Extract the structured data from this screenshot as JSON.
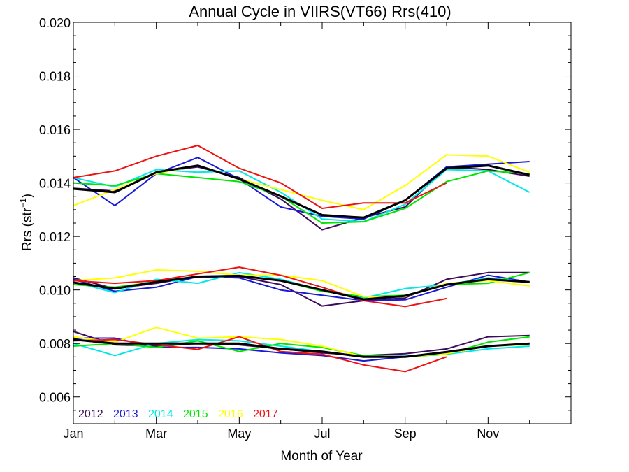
{
  "chart_data": {
    "type": "line",
    "title": "Annual Cycle in VIIRS(VT66) Rrs(410)",
    "xlabel": "Month of Year",
    "ylabel_main": "Rrs (str",
    "ylabel_sup": "−1",
    "ylabel_tail": ")",
    "xlim": [
      1,
      13
    ],
    "ylim": [
      0.005,
      0.02
    ],
    "x_ticks": [
      {
        "value": 1,
        "label": "Jan"
      },
      {
        "value": 3,
        "label": "Mar"
      },
      {
        "value": 5,
        "label": "May"
      },
      {
        "value": 7,
        "label": "Jul"
      },
      {
        "value": 9,
        "label": "Sep"
      },
      {
        "value": 11,
        "label": "Nov"
      }
    ],
    "y_ticks": [
      {
        "value": 0.006,
        "label": "0.006"
      },
      {
        "value": 0.008,
        "label": "0.008"
      },
      {
        "value": 0.01,
        "label": "0.010"
      },
      {
        "value": 0.012,
        "label": "0.012"
      },
      {
        "value": 0.014,
        "label": "0.014"
      },
      {
        "value": 0.016,
        "label": "0.016"
      },
      {
        "value": 0.018,
        "label": "0.018"
      },
      {
        "value": 0.02,
        "label": "0.020"
      }
    ],
    "x": [
      1,
      2,
      3,
      4,
      5,
      6,
      7,
      8,
      9,
      10,
      11,
      12
    ],
    "legend_placement": "bottom-left",
    "series": [
      {
        "name": "2012",
        "color": "#3c0a5a",
        "width": 2,
        "upper": [
          0.0138,
          0.0137,
          0.0144,
          0.0146,
          0.0142,
          0.0134,
          0.01225,
          0.0127,
          0.0131,
          0.0146,
          0.0145,
          0.01425
        ],
        "middle": [
          0.01045,
          0.01005,
          0.01025,
          0.0105,
          0.0105,
          0.0102,
          0.0094,
          0.0096,
          0.0097,
          0.0104,
          0.01065,
          0.01065
        ],
        "lower": [
          0.00845,
          0.00795,
          0.0079,
          0.008,
          0.00795,
          0.0078,
          0.00765,
          0.00755,
          0.00762,
          0.0078,
          0.00825,
          0.0083
        ]
      },
      {
        "name": "2013",
        "color": "#1a1ad6",
        "width": 2,
        "upper": [
          0.0142,
          0.01315,
          0.01435,
          0.01495,
          0.01415,
          0.0131,
          0.01275,
          0.01265,
          0.01335,
          0.0146,
          0.0147,
          0.0148
        ],
        "middle": [
          0.0104,
          0.00995,
          0.0101,
          0.0105,
          0.01045,
          0.01,
          0.0098,
          0.0096,
          0.00963,
          0.0101,
          0.01055,
          0.0103
        ],
        "lower": [
          0.0082,
          0.0082,
          0.00785,
          0.00785,
          0.0078,
          0.00765,
          0.00755,
          0.00735,
          0.0075,
          0.0077,
          0.0079,
          0.008
        ]
      },
      {
        "name": "2014",
        "color": "#00e8e8",
        "width": 2,
        "upper": [
          0.0142,
          0.01385,
          0.0145,
          0.0144,
          0.01445,
          0.01365,
          0.01265,
          0.01255,
          0.0132,
          0.0145,
          0.01445,
          0.01365
        ],
        "middle": [
          0.0103,
          0.0099,
          0.0104,
          0.01025,
          0.01065,
          0.0104,
          0.01,
          0.0097,
          0.01005,
          0.0102,
          0.01045,
          0.0103
        ],
        "lower": [
          0.008,
          0.00755,
          0.008,
          0.00815,
          0.0081,
          0.0079,
          0.0077,
          0.0075,
          0.00753,
          0.0076,
          0.0078,
          0.0079
        ]
      },
      {
        "name": "2015",
        "color": "#00e600",
        "width": 2,
        "upper": [
          0.014,
          0.0139,
          0.01435,
          0.0142,
          0.01405,
          0.0135,
          0.0125,
          0.01255,
          0.01305,
          0.01405,
          0.01445,
          0.01435
        ],
        "middle": [
          0.0102,
          0.0101,
          0.0103,
          0.0105,
          0.01055,
          0.01035,
          0.00995,
          0.00975,
          0.0098,
          0.0102,
          0.01025,
          0.01065
        ],
        "lower": [
          0.0079,
          0.008,
          0.00785,
          0.0081,
          0.0077,
          0.008,
          0.00785,
          0.00755,
          0.0075,
          0.0076,
          0.00805,
          0.00825
        ]
      },
      {
        "name": "2016",
        "color": "#ffff00",
        "width": 2,
        "upper": [
          0.01315,
          0.01375,
          0.01435,
          0.01465,
          0.01415,
          0.01375,
          0.01335,
          0.013,
          0.0139,
          0.01505,
          0.015,
          0.0144
        ],
        "middle": [
          0.01035,
          0.01045,
          0.01075,
          0.0107,
          0.01055,
          0.01055,
          0.01035,
          0.00975,
          0.00975,
          0.01025,
          0.01035,
          0.01015
        ],
        "lower": [
          0.00825,
          0.00805,
          0.0086,
          0.0082,
          0.00825,
          0.00815,
          0.0079,
          0.0075,
          0.0075,
          0.00762,
          0.0079,
          0.00795
        ]
      },
      {
        "name": "2017",
        "color": "#ee1111",
        "width": 2,
        "upper": [
          0.0142,
          0.01445,
          0.015,
          0.0154,
          0.01455,
          0.014,
          0.01305,
          0.01325,
          0.01325,
          0.014,
          null,
          null
        ],
        "middle": [
          0.01035,
          0.01025,
          0.01035,
          0.0106,
          0.01085,
          0.01055,
          0.0101,
          0.0096,
          0.00938,
          0.00968,
          null,
          null
        ],
        "lower": [
          0.0081,
          0.00815,
          0.00795,
          0.00778,
          0.00825,
          0.0077,
          0.0076,
          0.0072,
          0.00695,
          0.0075,
          null,
          null
        ]
      },
      {
        "name": "",
        "color": "#000000",
        "width": 3,
        "upper": [
          0.01378,
          0.01365,
          0.0144,
          0.01465,
          0.01415,
          0.0135,
          0.0128,
          0.0127,
          0.01335,
          0.01455,
          0.01465,
          0.0143
        ],
        "middle": [
          0.01028,
          0.01005,
          0.0103,
          0.0105,
          0.01053,
          0.01035,
          0.01,
          0.00965,
          0.00978,
          0.0102,
          0.0104,
          0.0103
        ],
        "lower": [
          0.00815,
          0.008,
          0.008,
          0.008,
          0.008,
          0.0078,
          0.0077,
          0.0075,
          0.0075,
          0.00768,
          0.0079,
          0.008
        ]
      }
    ]
  }
}
